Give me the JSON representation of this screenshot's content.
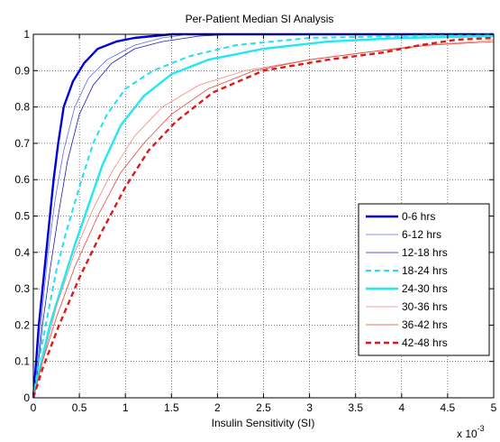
{
  "chart_data": {
    "type": "line",
    "title": "Per-Patient Median SI Analysis",
    "xlabel": "Insulin Sensitivity (SI)",
    "ylabel": "",
    "x_multiplier": "x 10",
    "x_exponent": "-3",
    "xlim": [
      0,
      5
    ],
    "ylim": [
      0,
      1
    ],
    "xticks": [
      0,
      0.5,
      1,
      1.5,
      2,
      2.5,
      3,
      3.5,
      4,
      4.5,
      5
    ],
    "xtick_labels": [
      "0",
      "0.5",
      "1",
      "1.5",
      "2",
      "2.5",
      "3",
      "3.5",
      "4",
      "4.5",
      "5"
    ],
    "yticks": [
      0,
      0.1,
      0.2,
      0.3,
      0.4,
      0.5,
      0.6,
      0.7,
      0.8,
      0.9,
      1
    ],
    "ytick_labels": [
      "0",
      "0.1",
      "0.2",
      "0.3",
      "0.4",
      "0.5",
      "0.6",
      "0.7",
      "0.8",
      "0.9",
      "1"
    ],
    "grid": true,
    "legend_position": "bottom-right",
    "series": [
      {
        "name": "0-6 hrs",
        "color": "#0000dd",
        "width": 2.4,
        "dash": "",
        "points": [
          [
            0,
            0
          ],
          [
            0.03,
            0.1
          ],
          [
            0.06,
            0.2
          ],
          [
            0.1,
            0.3
          ],
          [
            0.14,
            0.4
          ],
          [
            0.18,
            0.5
          ],
          [
            0.22,
            0.6
          ],
          [
            0.27,
            0.7
          ],
          [
            0.33,
            0.8
          ],
          [
            0.43,
            0.87
          ],
          [
            0.55,
            0.92
          ],
          [
            0.7,
            0.96
          ],
          [
            0.9,
            0.98
          ],
          [
            1.1,
            0.99
          ],
          [
            1.5,
            1
          ],
          [
            5,
            1
          ]
        ]
      },
      {
        "name": "6-12 hrs",
        "color": "#5b6bf0",
        "width": 0.8,
        "dash": "",
        "points": [
          [
            0,
            0
          ],
          [
            0.05,
            0.1
          ],
          [
            0.1,
            0.25
          ],
          [
            0.16,
            0.4
          ],
          [
            0.24,
            0.55
          ],
          [
            0.33,
            0.68
          ],
          [
            0.45,
            0.8
          ],
          [
            0.6,
            0.88
          ],
          [
            0.8,
            0.93
          ],
          [
            1.1,
            0.97
          ],
          [
            1.4,
            0.99
          ],
          [
            1.7,
            1
          ],
          [
            5,
            1
          ]
        ]
      },
      {
        "name": "12-18 hrs",
        "color": "#1a1ab8",
        "width": 0.8,
        "dash": "",
        "points": [
          [
            0,
            0
          ],
          [
            0.05,
            0.08
          ],
          [
            0.1,
            0.2
          ],
          [
            0.18,
            0.35
          ],
          [
            0.27,
            0.5
          ],
          [
            0.37,
            0.65
          ],
          [
            0.5,
            0.78
          ],
          [
            0.65,
            0.86
          ],
          [
            0.85,
            0.92
          ],
          [
            1.1,
            0.96
          ],
          [
            1.4,
            0.98
          ],
          [
            1.8,
            0.995
          ],
          [
            2.2,
            1
          ],
          [
            5,
            1
          ]
        ]
      },
      {
        "name": "18-24 hrs",
        "color": "#22e0f0",
        "width": 2,
        "dash": "6,4",
        "points": [
          [
            0,
            0
          ],
          [
            0.06,
            0.1
          ],
          [
            0.15,
            0.22
          ],
          [
            0.25,
            0.35
          ],
          [
            0.35,
            0.45
          ],
          [
            0.5,
            0.58
          ],
          [
            0.65,
            0.7
          ],
          [
            0.8,
            0.78
          ],
          [
            1,
            0.85
          ],
          [
            1.3,
            0.9
          ],
          [
            1.7,
            0.94
          ],
          [
            2.2,
            0.97
          ],
          [
            3,
            0.99
          ],
          [
            4,
            0.995
          ],
          [
            5,
            1
          ]
        ]
      },
      {
        "name": "24-30 hrs",
        "color": "#22e8f0",
        "width": 2.4,
        "dash": "",
        "points": [
          [
            0,
            0
          ],
          [
            0.07,
            0.08
          ],
          [
            0.18,
            0.2
          ],
          [
            0.3,
            0.3
          ],
          [
            0.45,
            0.42
          ],
          [
            0.6,
            0.53
          ],
          [
            0.75,
            0.64
          ],
          [
            0.95,
            0.75
          ],
          [
            1.2,
            0.83
          ],
          [
            1.5,
            0.89
          ],
          [
            1.9,
            0.93
          ],
          [
            2.5,
            0.96
          ],
          [
            3.2,
            0.98
          ],
          [
            4,
            0.99
          ],
          [
            5,
            0.995
          ]
        ]
      },
      {
        "name": "30-36 hrs",
        "color": "#f08a80",
        "width": 0.8,
        "dash": "",
        "points": [
          [
            0,
            0
          ],
          [
            0.1,
            0.1
          ],
          [
            0.25,
            0.25
          ],
          [
            0.45,
            0.4
          ],
          [
            0.65,
            0.52
          ],
          [
            0.85,
            0.62
          ],
          [
            1.1,
            0.72
          ],
          [
            1.4,
            0.8
          ],
          [
            1.8,
            0.86
          ],
          [
            2.3,
            0.9
          ],
          [
            3,
            0.93
          ],
          [
            3.6,
            0.95
          ],
          [
            4.2,
            0.97
          ],
          [
            4.8,
            0.98
          ],
          [
            5,
            0.985
          ]
        ]
      },
      {
        "name": "36-42 hrs",
        "color": "#e8453a",
        "width": 0.8,
        "dash": "",
        "points": [
          [
            0,
            0
          ],
          [
            0.1,
            0.1
          ],
          [
            0.25,
            0.22
          ],
          [
            0.45,
            0.36
          ],
          [
            0.7,
            0.5
          ],
          [
            0.95,
            0.62
          ],
          [
            1.2,
            0.7
          ],
          [
            1.5,
            0.78
          ],
          [
            1.9,
            0.85
          ],
          [
            2.4,
            0.9
          ],
          [
            3,
            0.93
          ],
          [
            3.6,
            0.95
          ],
          [
            4.3,
            0.97
          ],
          [
            5,
            0.98
          ]
        ]
      },
      {
        "name": "42-48 hrs",
        "color": "#dd1a1a",
        "width": 2.4,
        "dash": "6,4",
        "points": [
          [
            0,
            0
          ],
          [
            0.1,
            0.08
          ],
          [
            0.28,
            0.2
          ],
          [
            0.5,
            0.33
          ],
          [
            0.75,
            0.46
          ],
          [
            1,
            0.58
          ],
          [
            1.25,
            0.68
          ],
          [
            1.55,
            0.76
          ],
          [
            1.95,
            0.84
          ],
          [
            2.5,
            0.9
          ],
          [
            3.2,
            0.93
          ],
          [
            3.8,
            0.95
          ],
          [
            4.2,
            0.97
          ],
          [
            4.6,
            0.985
          ],
          [
            5,
            0.99
          ]
        ]
      }
    ]
  }
}
